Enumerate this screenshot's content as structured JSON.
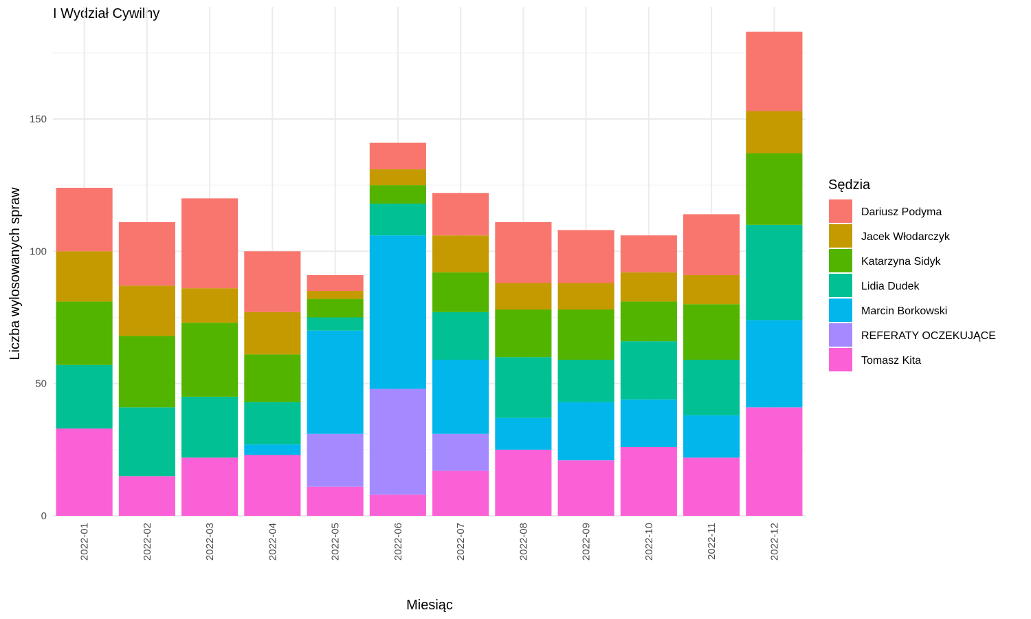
{
  "chart_data": {
    "type": "bar",
    "stacked": true,
    "title": "I Wydział Cywilny",
    "xlabel": "Miesiąc",
    "ylabel": "Liczba wylosowanych spraw",
    "ylim": [
      0,
      190
    ],
    "yticks": [
      0,
      50,
      100,
      150
    ],
    "grid": true,
    "legend_title": "Sędzia",
    "legend_position": "right",
    "categories": [
      "2022-01",
      "2022-02",
      "2022-03",
      "2022-04",
      "2022-05",
      "2022-06",
      "2022-07",
      "2022-08",
      "2022-09",
      "2022-10",
      "2022-11",
      "2022-12"
    ],
    "series": [
      {
        "name": "Dariusz Podyma",
        "color": "#F8766D",
        "values": [
          24,
          24,
          34,
          23,
          6,
          10,
          16,
          23,
          20,
          14,
          23,
          30
        ]
      },
      {
        "name": "Jacek Włodarczyk",
        "color": "#C49A00",
        "values": [
          19,
          19,
          13,
          16,
          3,
          6,
          14,
          10,
          10,
          11,
          11,
          16
        ]
      },
      {
        "name": "Katarzyna Sidyk",
        "color": "#53B400",
        "values": [
          24,
          27,
          28,
          18,
          7,
          7,
          15,
          18,
          19,
          15,
          21,
          27
        ]
      },
      {
        "name": "Lidia Dudek",
        "color": "#00C094",
        "values": [
          24,
          26,
          23,
          16,
          5,
          12,
          18,
          23,
          16,
          22,
          21,
          36
        ]
      },
      {
        "name": "Marcin Borkowski",
        "color": "#00B6EB",
        "values": [
          0,
          0,
          0,
          4,
          39,
          58,
          28,
          12,
          22,
          18,
          16,
          33
        ]
      },
      {
        "name": "REFERATY OCZEKUJĄCE",
        "color": "#A58AFF",
        "values": [
          0,
          0,
          0,
          0,
          20,
          40,
          14,
          0,
          0,
          0,
          0,
          0
        ]
      },
      {
        "name": "Tomasz Kita",
        "color": "#FB61D7",
        "values": [
          33,
          15,
          22,
          23,
          11,
          8,
          17,
          25,
          21,
          26,
          22,
          41
        ]
      }
    ]
  }
}
